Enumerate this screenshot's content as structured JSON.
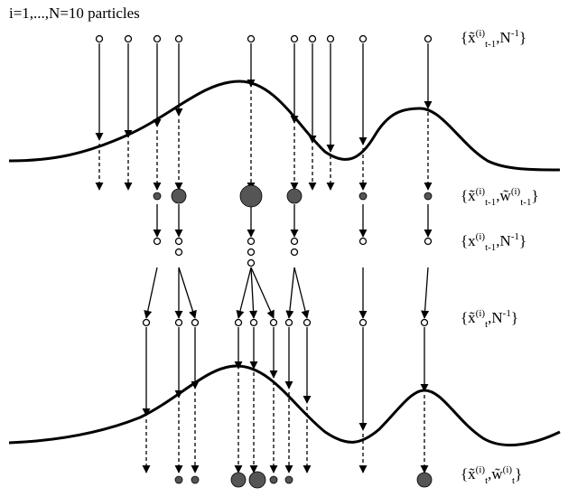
{
  "header": "i=1,...,N=10 particles",
  "colors": {
    "ink": "#000000",
    "particle_fill": "#555555",
    "background": "#ffffff"
  },
  "stages": [
    {
      "id": "prior",
      "base": "x",
      "tilde_base": true,
      "sub": "t-1",
      "sup": "(i)",
      "second": "N",
      "second_tilde": false,
      "second_sub": "",
      "second_sup": "-1"
    },
    {
      "id": "weighted",
      "base": "x",
      "tilde_base": true,
      "sub": "t-1",
      "sup": "(i)",
      "second": "w",
      "second_tilde": true,
      "second_sub": "t-1",
      "second_sup": "(i)"
    },
    {
      "id": "resampled",
      "base": "x",
      "tilde_base": false,
      "sub": "t-1",
      "sup": "(i)",
      "second": "N",
      "second_tilde": false,
      "second_sub": "",
      "second_sup": "-1"
    },
    {
      "id": "predicted",
      "base": "x",
      "tilde_base": true,
      "sub": "t",
      "sup": "(i)",
      "second": "N",
      "second_tilde": false,
      "second_sub": "",
      "second_sup": "-1"
    },
    {
      "id": "updated",
      "base": "x",
      "tilde_base": true,
      "sub": "t",
      "sup": "(i)",
      "second": "w",
      "second_tilde": true,
      "second_sub": "t",
      "second_sup": "(i)"
    }
  ]
}
